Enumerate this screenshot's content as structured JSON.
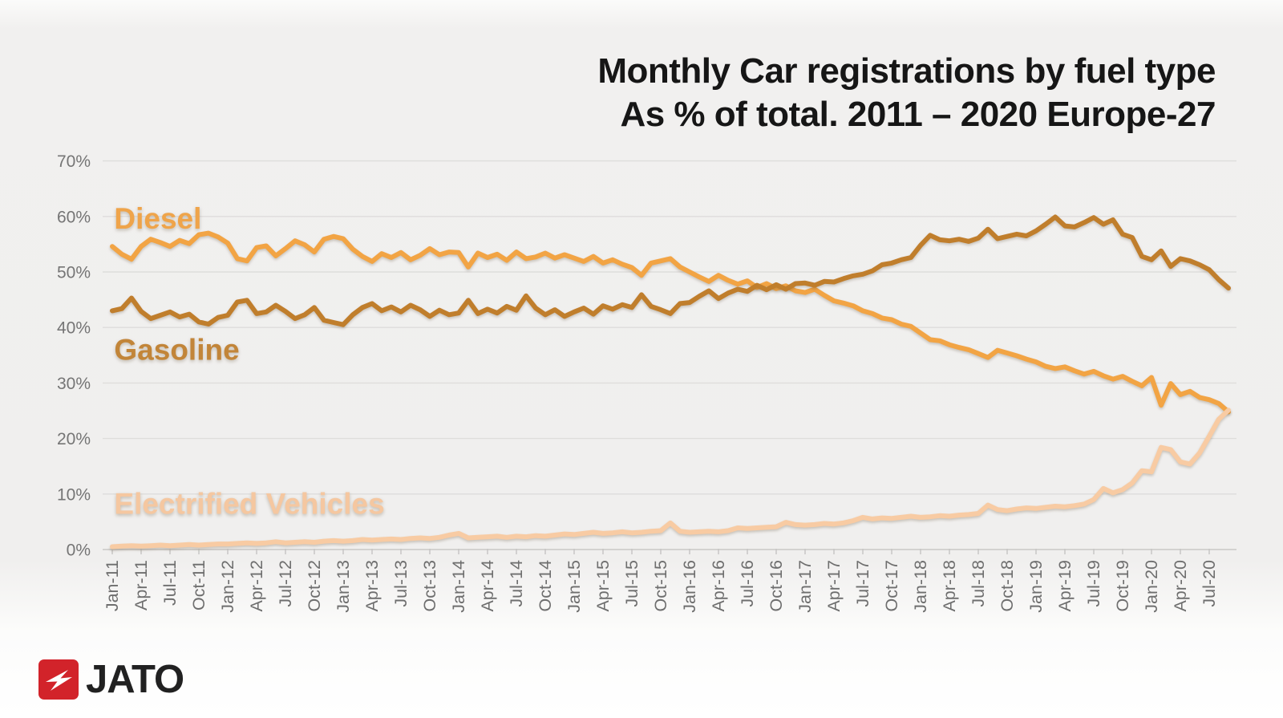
{
  "title": {
    "line1": "Monthly Car registrations by fuel type",
    "line2": "As % of total. 2011 – 2020 Europe-27"
  },
  "branding": {
    "logo_text": "JATO",
    "logo_color": "#D2232A"
  },
  "chart_data": {
    "type": "line",
    "title": "Monthly Car registrations by fuel type — As % of total. 2011 – 2020 Europe-27",
    "x_interval": "monthly",
    "x_start": "Jan-11",
    "x_end": "Sep-20",
    "x_tick_step_months": 3,
    "x_tick_labels": [
      "Jan-11",
      "Apr-11",
      "Jul-11",
      "Oct-11",
      "Jan-12",
      "Apr-12",
      "Jul-12",
      "Oct-12",
      "Jan-13",
      "Apr-13",
      "Jul-13",
      "Oct-13",
      "Jan-14",
      "Apr-14",
      "Jul-14",
      "Oct-14",
      "Jan-15",
      "Apr-15",
      "Jul-15",
      "Oct-15",
      "Jan-16",
      "Apr-16",
      "Jul-16",
      "Oct-16",
      "Jan-17",
      "Apr-17",
      "Jul-17",
      "Oct-17",
      "Jan-18",
      "Apr-18",
      "Jul-18",
      "Oct-18",
      "Jan-19",
      "Apr-19",
      "Jul-19",
      "Oct-19",
      "Jan-20",
      "Apr-20",
      "Jul-20"
    ],
    "y_ticks": [
      "0%",
      "10%",
      "20%",
      "30%",
      "40%",
      "50%",
      "60%",
      "70%"
    ],
    "ylim": [
      0,
      70
    ],
    "grid": true,
    "legend_position": "inline-labels",
    "axis_label_color": "#6E6E6E",
    "gridline_color": "#DEDDDB",
    "series": [
      {
        "name": "Diesel",
        "color": "#F2A444",
        "label_color": "#EFA44A",
        "label_month": 0.2,
        "label_pct": 57.8,
        "values": [
          54.6,
          53.2,
          52.3,
          54.6,
          55.9,
          55.3,
          54.6,
          55.7,
          55.1,
          56.7,
          57.0,
          56.3,
          55.2,
          52.4,
          52.0,
          54.4,
          54.7,
          52.9,
          54.2,
          55.6,
          54.9,
          53.6,
          55.9,
          56.4,
          56.0,
          54.1,
          52.8,
          51.9,
          53.3,
          52.6,
          53.5,
          52.2,
          53.0,
          54.2,
          53.1,
          53.6,
          53.5,
          50.9,
          53.4,
          52.6,
          53.2,
          52.1,
          53.6,
          52.4,
          52.7,
          53.4,
          52.5,
          53.1,
          52.5,
          51.9,
          52.8,
          51.6,
          52.2,
          51.4,
          50.8,
          49.4,
          51.6,
          52.0,
          52.4,
          50.9,
          50.0,
          49.1,
          48.3,
          49.4,
          48.5,
          47.8,
          48.4,
          47.2,
          47.9,
          47.0,
          47.5,
          46.6,
          46.3,
          46.9,
          45.8,
          44.8,
          44.4,
          43.9,
          43.0,
          42.5,
          41.7,
          41.4,
          40.6,
          40.2,
          39.0,
          37.8,
          37.6,
          36.9,
          36.4,
          36.0,
          35.3,
          34.6,
          35.9,
          35.4,
          34.9,
          34.3,
          33.8,
          33.0,
          32.6,
          32.9,
          32.2,
          31.6,
          32.1,
          31.3,
          30.7,
          31.2,
          30.3,
          29.5,
          31.0,
          26.0,
          29.9,
          27.9,
          28.5,
          27.4,
          27.0,
          26.3,
          24.8
        ]
      },
      {
        "name": "Gasoline",
        "color": "#C07E2C",
        "label_color": "#C28539",
        "label_month": 0.2,
        "label_pct": 34.2,
        "values": [
          43.0,
          43.4,
          45.3,
          42.9,
          41.6,
          42.2,
          42.8,
          41.9,
          42.4,
          41.0,
          40.6,
          41.8,
          42.2,
          44.6,
          44.9,
          42.5,
          42.8,
          44.0,
          42.9,
          41.6,
          42.3,
          43.6,
          41.3,
          40.9,
          40.5,
          42.3,
          43.6,
          44.3,
          43.0,
          43.7,
          42.8,
          44.0,
          43.2,
          42.0,
          43.1,
          42.3,
          42.6,
          44.9,
          42.5,
          43.3,
          42.6,
          43.8,
          43.1,
          45.7,
          43.5,
          42.3,
          43.2,
          42.0,
          42.8,
          43.5,
          42.4,
          43.9,
          43.3,
          44.1,
          43.6,
          45.9,
          43.8,
          43.2,
          42.5,
          44.3,
          44.5,
          45.6,
          46.6,
          45.2,
          46.2,
          46.9,
          46.5,
          47.6,
          46.8,
          47.7,
          46.9,
          47.9,
          48.0,
          47.6,
          48.3,
          48.2,
          48.8,
          49.3,
          49.6,
          50.2,
          51.3,
          51.6,
          52.2,
          52.6,
          54.8,
          56.6,
          55.8,
          55.6,
          55.9,
          55.5,
          56.1,
          57.7,
          56.0,
          56.4,
          56.8,
          56.5,
          57.4,
          58.6,
          59.9,
          58.3,
          58.1,
          58.9,
          59.8,
          58.6,
          59.4,
          56.8,
          56.2,
          52.8,
          52.2,
          53.8,
          51.0,
          52.4,
          52.0,
          51.3,
          50.4,
          48.6,
          47.1
        ]
      },
      {
        "name": "Electrified Vehicles",
        "color": "#F8CBA3",
        "label_color": "#F5C7A0",
        "label_month": 0.2,
        "label_pct": 6.4,
        "values": [
          0.5,
          0.6,
          0.7,
          0.6,
          0.7,
          0.8,
          0.7,
          0.8,
          0.9,
          0.8,
          0.9,
          1.0,
          1.0,
          1.1,
          1.2,
          1.1,
          1.2,
          1.4,
          1.2,
          1.3,
          1.4,
          1.3,
          1.5,
          1.6,
          1.5,
          1.6,
          1.8,
          1.7,
          1.8,
          1.9,
          1.8,
          2.0,
          2.1,
          2.0,
          2.2,
          2.6,
          2.9,
          2.1,
          2.2,
          2.3,
          2.4,
          2.2,
          2.4,
          2.3,
          2.5,
          2.4,
          2.6,
          2.8,
          2.7,
          2.9,
          3.1,
          2.9,
          3.0,
          3.2,
          3.0,
          3.1,
          3.3,
          3.4,
          4.8,
          3.3,
          3.1,
          3.2,
          3.3,
          3.2,
          3.4,
          3.9,
          3.8,
          3.9,
          4.0,
          4.1,
          4.9,
          4.5,
          4.4,
          4.5,
          4.7,
          4.6,
          4.8,
          5.2,
          5.8,
          5.5,
          5.7,
          5.6,
          5.8,
          6.0,
          5.8,
          5.9,
          6.1,
          6.0,
          6.2,
          6.3,
          6.5,
          8.0,
          7.2,
          7.0,
          7.3,
          7.5,
          7.4,
          7.6,
          7.8,
          7.7,
          7.9,
          8.2,
          9.0,
          11.0,
          10.2,
          10.8,
          12.0,
          14.2,
          14.0,
          18.4,
          18.0,
          15.8,
          15.4,
          17.4,
          20.4,
          23.5,
          25.1
        ]
      }
    ]
  }
}
